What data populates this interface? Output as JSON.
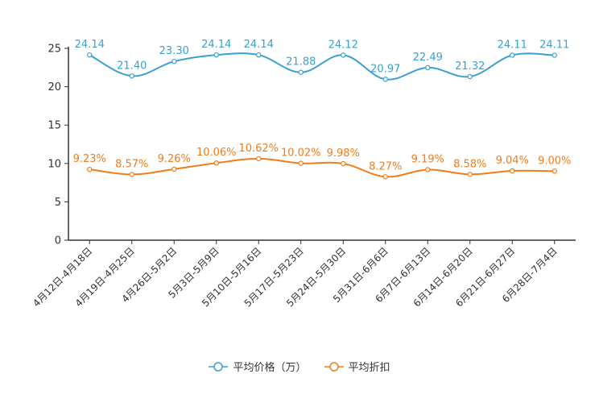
{
  "chart_data": {
    "type": "line",
    "categories": [
      "4月12日-4月18日",
      "4月19日-4月25日",
      "4月26日-5月2日",
      "5月3日-5月9日",
      "5月10日-5月16日",
      "5月17日-5月23日",
      "5月24日-5月30日",
      "5月31日-6月6日",
      "6月7日-6月13日",
      "6月14日-6月20日",
      "6月21日-6月27日",
      "6月28日-7月4日"
    ],
    "ylim": [
      0,
      25
    ],
    "yticks": [
      0,
      5,
      10,
      15,
      20,
      25
    ],
    "series": [
      {
        "name": "平均价格（万）",
        "color": "#3b9fd1",
        "values": [
          24.14,
          21.4,
          23.3,
          24.14,
          24.14,
          21.88,
          24.12,
          20.97,
          22.49,
          21.32,
          24.11,
          24.11
        ],
        "labels": [
          "24.14",
          "21.40",
          "23.30",
          "24.14",
          "24.14",
          "21.88",
          "24.12",
          "20.97",
          "22.49",
          "21.32",
          "24.11",
          "24.11"
        ]
      },
      {
        "name": "平均折扣",
        "color": "#f07c1a",
        "values": [
          9.23,
          8.57,
          9.26,
          10.06,
          10.62,
          10.02,
          9.98,
          8.27,
          9.19,
          8.58,
          9.04,
          9.0
        ],
        "labels": [
          "9.23%",
          "8.57%",
          "9.26%",
          "10.06%",
          "10.62%",
          "10.02%",
          "9.98%",
          "8.27%",
          "9.19%",
          "8.58%",
          "9.04%",
          "9.00%"
        ]
      }
    ],
    "legend_position": "bottom-center"
  }
}
